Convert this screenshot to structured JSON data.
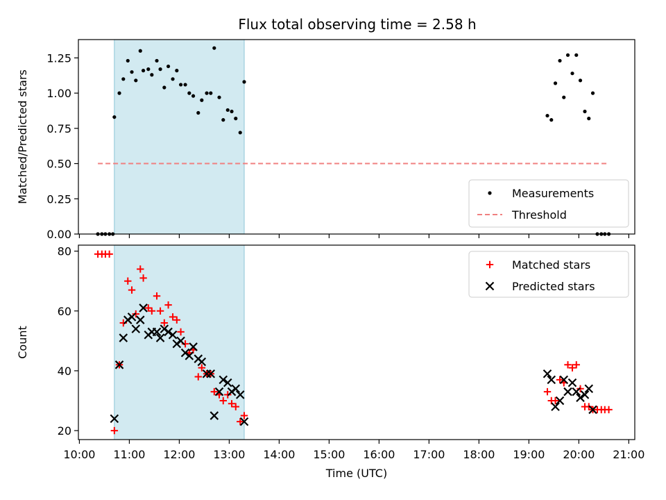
{
  "chart_data": [
    {
      "type": "scatter",
      "title": "Flux total observing time = 2.58 h",
      "ylabel": "Matched/Predicted stars",
      "xlabel": "",
      "xlim_hours": [
        9.98,
        21.12
      ],
      "ylim": [
        0,
        1.38
      ],
      "yticks": [
        "0.00",
        "0.25",
        "0.50",
        "0.75",
        "1.00",
        "1.25"
      ],
      "highlight_span_hours": [
        10.7,
        13.3
      ],
      "highlight_color": "#add8e6",
      "legend": "bottom-right",
      "series": [
        {
          "name": "Measurements",
          "color": "#000000",
          "marker": "dot",
          "points": [
            [
              10.37,
              0
            ],
            [
              10.45,
              0
            ],
            [
              10.52,
              0
            ],
            [
              10.6,
              0
            ],
            [
              10.67,
              0
            ],
            [
              10.7,
              0.83
            ],
            [
              10.8,
              1.0
            ],
            [
              10.88,
              1.1
            ],
            [
              10.97,
              1.23
            ],
            [
              11.05,
              1.15
            ],
            [
              11.13,
              1.09
            ],
            [
              11.22,
              1.3
            ],
            [
              11.28,
              1.16
            ],
            [
              11.38,
              1.17
            ],
            [
              11.45,
              1.13
            ],
            [
              11.55,
              1.23
            ],
            [
              11.62,
              1.17
            ],
            [
              11.7,
              1.04
            ],
            [
              11.78,
              1.19
            ],
            [
              11.87,
              1.1
            ],
            [
              11.95,
              1.16
            ],
            [
              12.03,
              1.06
            ],
            [
              12.12,
              1.06
            ],
            [
              12.2,
              1.0
            ],
            [
              12.28,
              0.98
            ],
            [
              12.38,
              0.86
            ],
            [
              12.45,
              0.95
            ],
            [
              12.55,
              1.0
            ],
            [
              12.63,
              1.0
            ],
            [
              12.7,
              1.32
            ],
            [
              12.8,
              0.97
            ],
            [
              12.88,
              0.81
            ],
            [
              12.97,
              0.88
            ],
            [
              13.05,
              0.87
            ],
            [
              13.13,
              0.82
            ],
            [
              13.22,
              0.72
            ],
            [
              13.3,
              1.08
            ],
            [
              19.37,
              0.84
            ],
            [
              19.45,
              0.81
            ],
            [
              19.53,
              1.07
            ],
            [
              19.62,
              1.23
            ],
            [
              19.7,
              0.97
            ],
            [
              19.78,
              1.27
            ],
            [
              19.87,
              1.14
            ],
            [
              19.95,
              1.27
            ],
            [
              20.03,
              1.09
            ],
            [
              20.12,
              0.87
            ],
            [
              20.2,
              0.82
            ],
            [
              20.28,
              1.0
            ],
            [
              20.37,
              0
            ],
            [
              20.45,
              0
            ],
            [
              20.52,
              0
            ],
            [
              20.6,
              0
            ]
          ]
        },
        {
          "name": "Threshold",
          "color": "#f08080",
          "style": "dashed",
          "points": [
            [
              10.37,
              0.5
            ],
            [
              20.6,
              0.5
            ]
          ]
        }
      ]
    },
    {
      "type": "scatter",
      "title": "",
      "ylabel": "Count",
      "xlabel": "Time (UTC)",
      "xlim_hours": [
        9.98,
        21.12
      ],
      "ylim": [
        17,
        82
      ],
      "yticks": [
        "20",
        "40",
        "60",
        "80"
      ],
      "xticks": [
        "10:00",
        "11:00",
        "12:00",
        "13:00",
        "14:00",
        "15:00",
        "16:00",
        "17:00",
        "18:00",
        "19:00",
        "20:00",
        "21:00"
      ],
      "highlight_span_hours": [
        10.7,
        13.3
      ],
      "highlight_color": "#add8e6",
      "legend": "top-right",
      "series": [
        {
          "name": "Matched stars",
          "color": "#ff0000",
          "marker": "plus",
          "points": [
            [
              10.37,
              79
            ],
            [
              10.45,
              79
            ],
            [
              10.52,
              79
            ],
            [
              10.6,
              79
            ],
            [
              10.7,
              20
            ],
            [
              10.8,
              42
            ],
            [
              10.88,
              56
            ],
            [
              10.97,
              70
            ],
            [
              11.05,
              67
            ],
            [
              11.13,
              59
            ],
            [
              11.22,
              74
            ],
            [
              11.28,
              71
            ],
            [
              11.38,
              61
            ],
            [
              11.45,
              60
            ],
            [
              11.55,
              65
            ],
            [
              11.62,
              60
            ],
            [
              11.7,
              56
            ],
            [
              11.78,
              62
            ],
            [
              11.87,
              58
            ],
            [
              11.95,
              57
            ],
            [
              12.03,
              53
            ],
            [
              12.12,
              49
            ],
            [
              12.2,
              46
            ],
            [
              12.28,
              47
            ],
            [
              12.38,
              38
            ],
            [
              12.45,
              41
            ],
            [
              12.55,
              39
            ],
            [
              12.63,
              39
            ],
            [
              12.7,
              33
            ],
            [
              12.8,
              32
            ],
            [
              12.88,
              30
            ],
            [
              12.97,
              32
            ],
            [
              13.05,
              29
            ],
            [
              13.13,
              28
            ],
            [
              13.22,
              23
            ],
            [
              13.3,
              25
            ],
            [
              19.37,
              33
            ],
            [
              19.45,
              30
            ],
            [
              19.53,
              30
            ],
            [
              19.62,
              37
            ],
            [
              19.7,
              36
            ],
            [
              19.78,
              42
            ],
            [
              19.87,
              41
            ],
            [
              19.95,
              42
            ],
            [
              20.03,
              34
            ],
            [
              20.12,
              28
            ],
            [
              20.2,
              28
            ],
            [
              20.28,
              27
            ],
            [
              20.37,
              27
            ],
            [
              20.45,
              27
            ],
            [
              20.52,
              27
            ],
            [
              20.6,
              27
            ]
          ]
        },
        {
          "name": "Predicted stars",
          "color": "#000000",
          "marker": "x",
          "points": [
            [
              10.7,
              24
            ],
            [
              10.8,
              42
            ],
            [
              10.88,
              51
            ],
            [
              10.97,
              57
            ],
            [
              11.05,
              58
            ],
            [
              11.13,
              54
            ],
            [
              11.22,
              57
            ],
            [
              11.28,
              61
            ],
            [
              11.38,
              52
            ],
            [
              11.45,
              53
            ],
            [
              11.55,
              53
            ],
            [
              11.62,
              51
            ],
            [
              11.7,
              54
            ],
            [
              11.78,
              53
            ],
            [
              11.87,
              52
            ],
            [
              11.95,
              49
            ],
            [
              12.03,
              50
            ],
            [
              12.12,
              46
            ],
            [
              12.2,
              45
            ],
            [
              12.28,
              48
            ],
            [
              12.38,
              44
            ],
            [
              12.45,
              43
            ],
            [
              12.55,
              39
            ],
            [
              12.63,
              39
            ],
            [
              12.7,
              25
            ],
            [
              12.8,
              33
            ],
            [
              12.88,
              37
            ],
            [
              12.97,
              36
            ],
            [
              13.05,
              33
            ],
            [
              13.13,
              34
            ],
            [
              13.22,
              32
            ],
            [
              13.3,
              23
            ],
            [
              19.37,
              39
            ],
            [
              19.45,
              37
            ],
            [
              19.53,
              28
            ],
            [
              19.62,
              30
            ],
            [
              19.7,
              37
            ],
            [
              19.78,
              33
            ],
            [
              19.87,
              36
            ],
            [
              19.95,
              33
            ],
            [
              20.03,
              31
            ],
            [
              20.12,
              32
            ],
            [
              20.2,
              34
            ],
            [
              20.28,
              27
            ]
          ]
        }
      ]
    }
  ]
}
